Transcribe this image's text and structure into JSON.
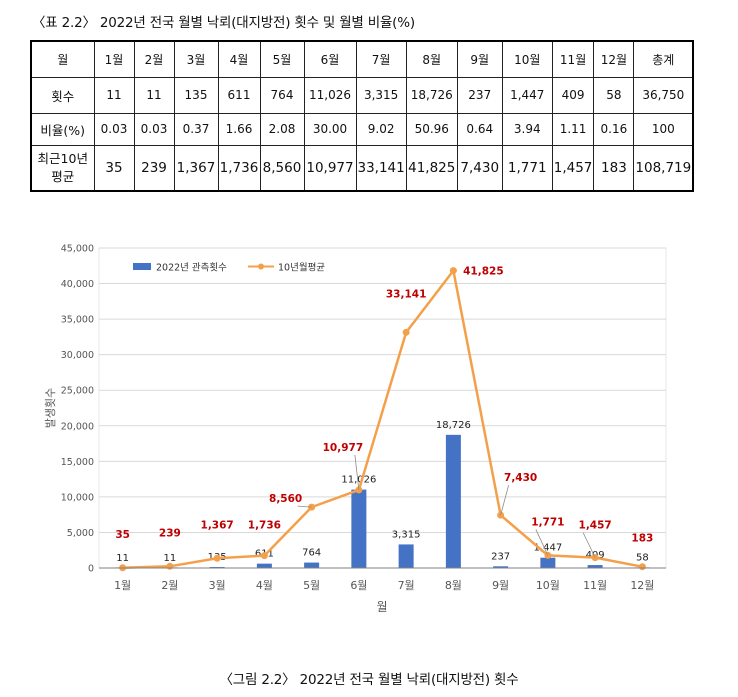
{
  "table": {
    "caption": "〈표 2.2〉 2022년 전국 월별 낙뢰(대지방전) 횟수 및 월별 비율(%)",
    "columns": [
      "월",
      "1월",
      "2월",
      "3월",
      "4월",
      "5월",
      "6월",
      "7월",
      "8월",
      "9월",
      "10월",
      "11월",
      "12월",
      "총계"
    ],
    "rows": [
      {
        "label": "횟수",
        "values": [
          "11",
          "11",
          "135",
          "611",
          "764",
          "11,026",
          "3,315",
          "18,726",
          "237",
          "1,447",
          "409",
          "58",
          "36,750"
        ]
      },
      {
        "label": "비율(%)",
        "values": [
          "0.03",
          "0.03",
          "0.37",
          "1.66",
          "2.08",
          "30.00",
          "9.02",
          "50.96",
          "0.64",
          "3.94",
          "1.11",
          "0.16",
          "100"
        ]
      },
      {
        "label_line1": "최근10년",
        "label_line2": "평균",
        "values": [
          "35",
          "239",
          "1,367",
          "1,736",
          "8,560",
          "10,977",
          "33,141",
          "41,825",
          "7,430",
          "1,771",
          "1,457",
          "183",
          "108,719"
        ]
      }
    ]
  },
  "chart_data": {
    "type": "bar",
    "categories": [
      "1월",
      "2월",
      "3월",
      "4월",
      "5월",
      "6월",
      "7월",
      "8월",
      "9월",
      "10월",
      "11월",
      "12월"
    ],
    "series": [
      {
        "name": "2022년 관측횟수",
        "type": "bar",
        "color": "#4472C4",
        "values": [
          11,
          11,
          135,
          611,
          764,
          11026,
          3315,
          18726,
          237,
          1447,
          409,
          58
        ],
        "labels": [
          "11",
          "11",
          "135",
          "611",
          "764",
          "11,026",
          "3,315",
          "18,726",
          "237",
          "1,447",
          "409",
          "58"
        ]
      },
      {
        "name": "10년월평균",
        "type": "line",
        "color": "#F4A04A",
        "values": [
          35,
          239,
          1367,
          1736,
          8560,
          10977,
          33141,
          41825,
          7430,
          1771,
          1457,
          183
        ],
        "labels": [
          "35",
          "239",
          "1,367",
          "1,736",
          "8,560",
          "10,977",
          "33,141",
          "41,825",
          "7,430",
          "1,771",
          "1,457",
          "183"
        ]
      }
    ],
    "xlabel": "월",
    "ylabel": "발생횟수",
    "ylim": [
      0,
      45000
    ],
    "yticks": [
      0,
      5000,
      10000,
      15000,
      20000,
      25000,
      30000,
      35000,
      40000,
      45000
    ],
    "ytick_labels": [
      "0",
      "5,000",
      "10,000",
      "15,000",
      "20,000",
      "25,000",
      "30,000",
      "35,000",
      "40,000",
      "45,000"
    ],
    "grid": true,
    "legend": "top-left",
    "line_label_color": "#C00000"
  },
  "figure": {
    "caption": "〈그림 2.2〉 2022년 전국 월별 낙뢰(대지방전) 횟수"
  }
}
